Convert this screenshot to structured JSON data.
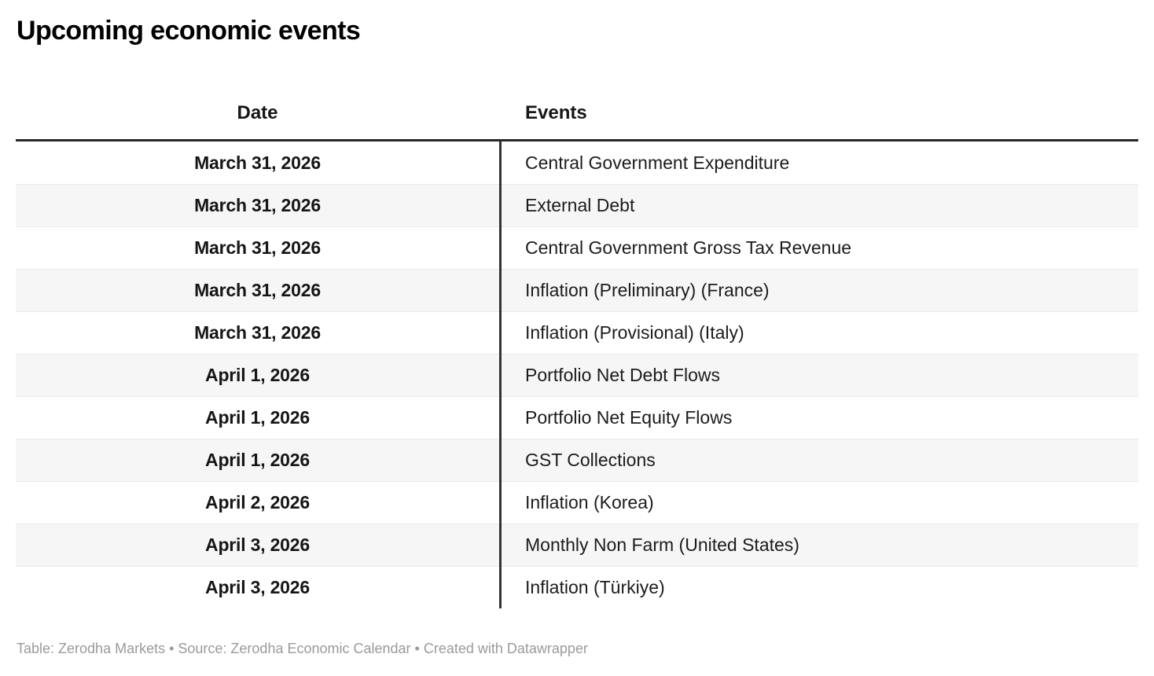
{
  "title": "Upcoming economic events",
  "table": {
    "columns": [
      {
        "label": "Date"
      },
      {
        "label": "Events"
      }
    ],
    "rows": [
      {
        "date": "March 31, 2026",
        "event": "Central Government Expenditure"
      },
      {
        "date": "March 31, 2026",
        "event": "External Debt"
      },
      {
        "date": "March 31, 2026",
        "event": "Central Government Gross Tax Revenue"
      },
      {
        "date": "March 31, 2026",
        "event": "Inflation (Preliminary) (France)"
      },
      {
        "date": "March 31, 2026",
        "event": "Inflation (Provisional) (Italy)"
      },
      {
        "date": "April 1, 2026",
        "event": "Portfolio Net Debt Flows"
      },
      {
        "date": "April 1, 2026",
        "event": "Portfolio Net Equity Flows"
      },
      {
        "date": "April 1, 2026",
        "event": "GST Collections"
      },
      {
        "date": "April 2, 2026",
        "event": "Inflation (Korea)"
      },
      {
        "date": "April 3, 2026",
        "event": "Monthly Non Farm (United States)"
      },
      {
        "date": "April 3, 2026",
        "event": "Inflation (Türkiye)"
      }
    ]
  },
  "footer": {
    "text": "Table: Zerodha Markets • Source: Zerodha Economic Calendar • Created with Datawrapper"
  },
  "colors": {
    "title_text": "#000000",
    "header_rule": "#282828",
    "column_divider": "#333333",
    "body_text": "#1c1c1c",
    "row_alt_background": "#f6f6f6",
    "row_separator": "#e9e9e9",
    "footer_text": "#9a9a9a"
  },
  "chart_data": {
    "type": "table",
    "title": "Upcoming economic events",
    "columns": [
      "Date",
      "Events"
    ],
    "rows": [
      [
        "March 31, 2026",
        "Central Government Expenditure"
      ],
      [
        "March 31, 2026",
        "External Debt"
      ],
      [
        "March 31, 2026",
        "Central Government Gross Tax Revenue"
      ],
      [
        "March 31, 2026",
        "Inflation (Preliminary) (France)"
      ],
      [
        "March 31, 2026",
        "Inflation (Provisional) (Italy)"
      ],
      [
        "April 1, 2026",
        "Portfolio Net Debt Flows"
      ],
      [
        "April 1, 2026",
        "Portfolio Net Equity Flows"
      ],
      [
        "April 1, 2026",
        "GST Collections"
      ],
      [
        "April 2, 2026",
        "Inflation (Korea)"
      ],
      [
        "April 3, 2026",
        "Monthly Non Farm (United States)"
      ],
      [
        "April 3, 2026",
        "Inflation (Türkiye)"
      ]
    ],
    "notes": "Zebra-striped table, Date column centered bold, thick rule under header, vertical divider between columns"
  }
}
